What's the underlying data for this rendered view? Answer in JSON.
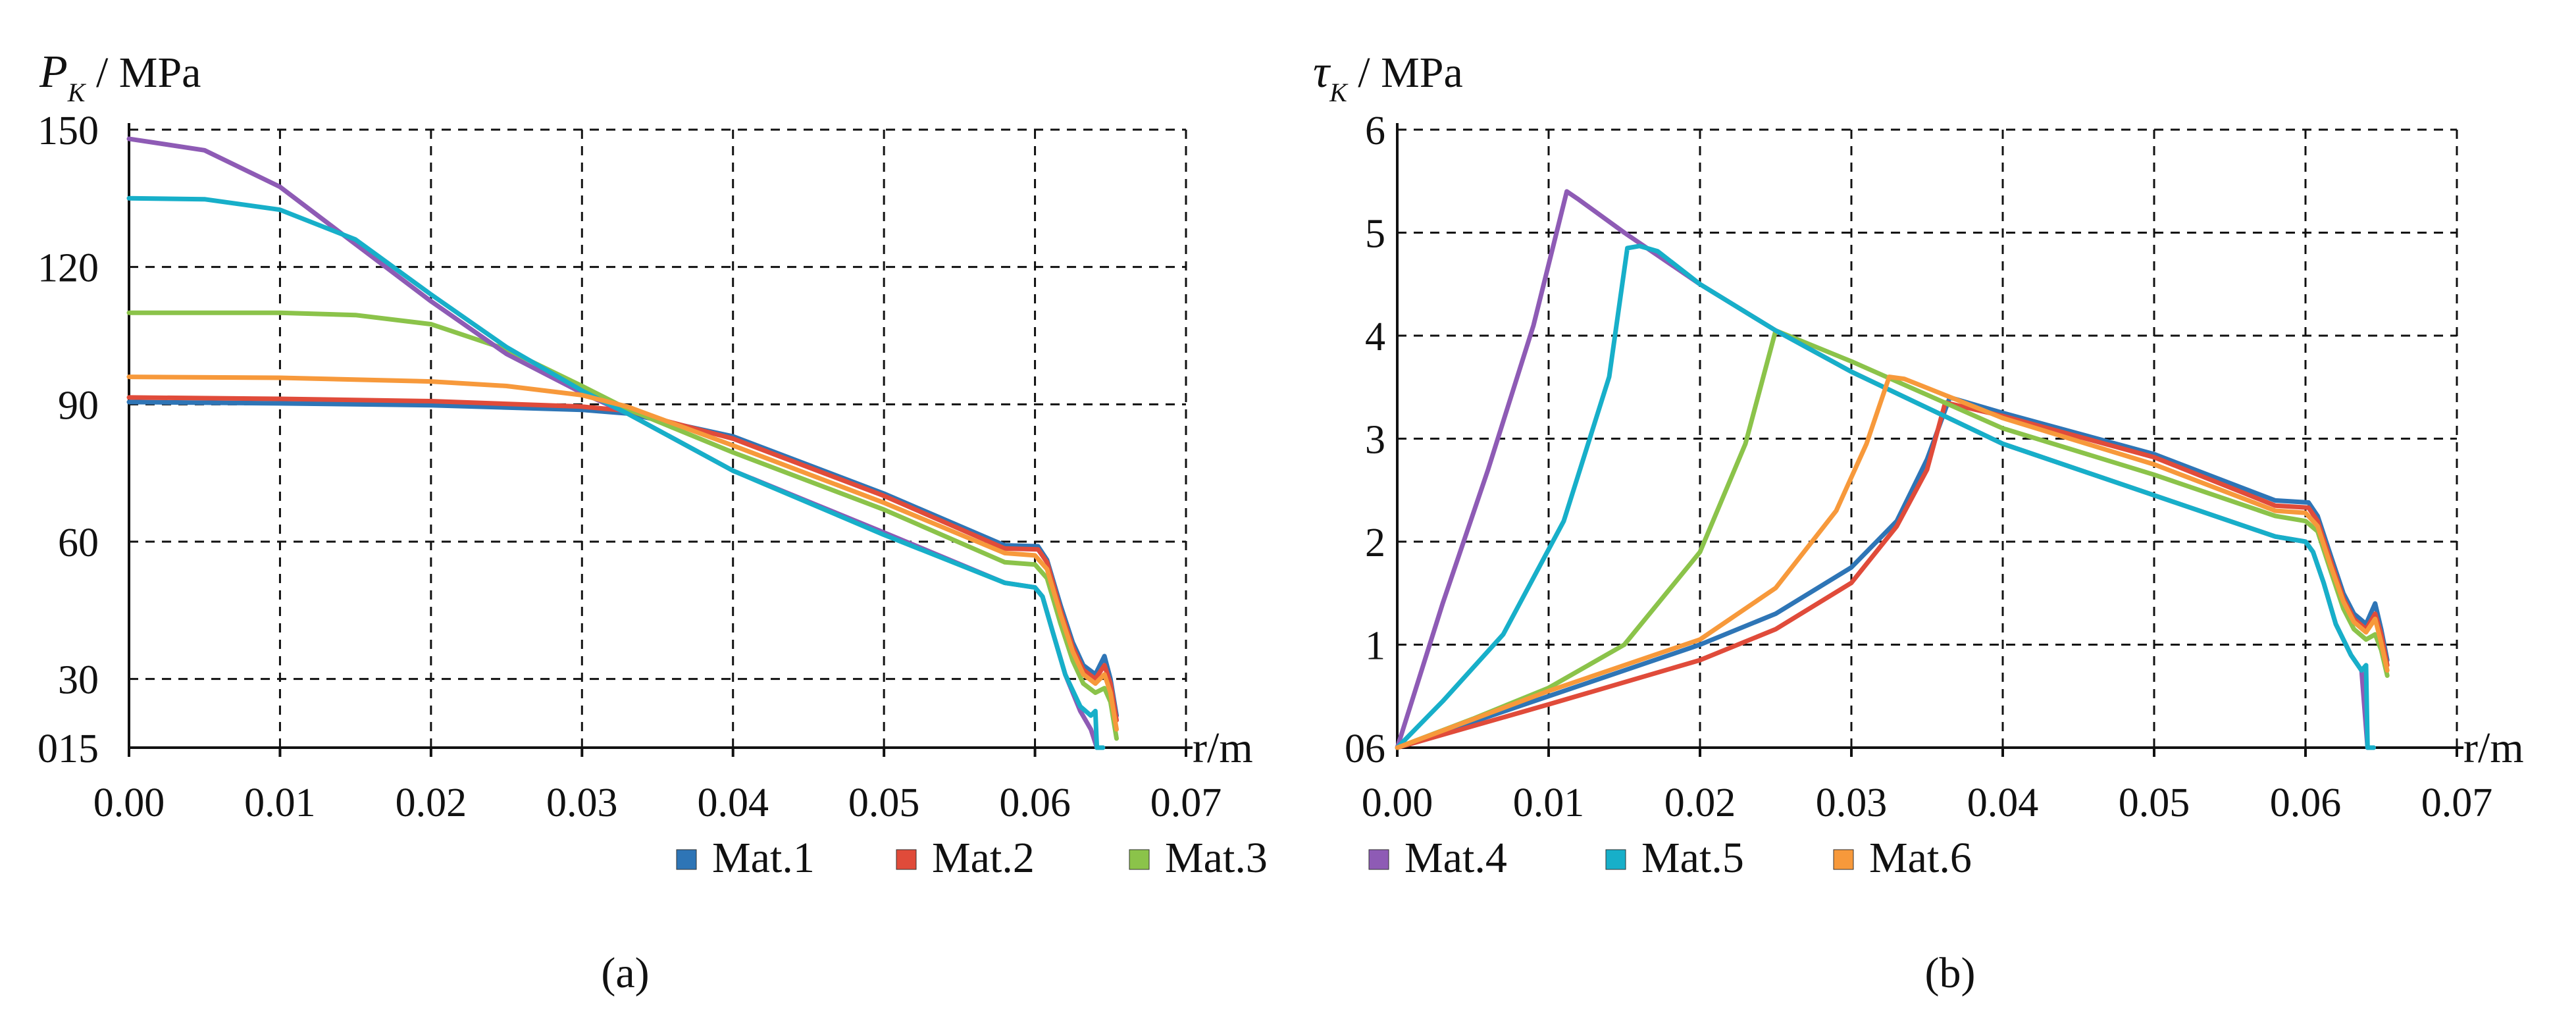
{
  "colors": {
    "Mat.1": "#2E75B6",
    "Mat.2": "#E04B3A",
    "Mat.3": "#8BC34A",
    "Mat.4": "#8E5BB5",
    "Mat.5": "#17AFC9",
    "Mat.6": "#F7993B"
  },
  "legend": {
    "items": [
      "Mat.1",
      "Mat.2",
      "Mat.3",
      "Mat.4",
      "Mat.5",
      "Mat.6"
    ]
  },
  "chart_data": [
    {
      "type": "line",
      "panel_label": "(a)",
      "ylabel": {
        "symbol": "P",
        "subscript": "K",
        "unit": " / MPa"
      },
      "xlabel": "r/m",
      "xlim": [
        0,
        0.07
      ],
      "ylim": [
        15,
        150
      ],
      "xticks": [
        "0.00",
        "0.01",
        "0.02",
        "0.03",
        "0.04",
        "0.05",
        "0.06",
        "0.07"
      ],
      "yticks": [
        {
          "value": 15,
          "label": "015"
        },
        {
          "value": 30,
          "label": "30"
        },
        {
          "value": 60,
          "label": "60"
        },
        {
          "value": 90,
          "label": "90"
        },
        {
          "value": 120,
          "label": "120"
        },
        {
          "value": 150,
          "label": "150"
        }
      ],
      "grid": true,
      "series": [
        {
          "name": "Mat.1",
          "x": [
            0,
            0.01,
            0.02,
            0.03,
            0.033,
            0.04,
            0.05,
            0.058,
            0.0602,
            0.0608,
            0.0617,
            0.0625,
            0.0632,
            0.064,
            0.0646,
            0.065,
            0.0654
          ],
          "y": [
            90.5,
            90.2,
            89.8,
            88.8,
            88,
            83,
            70.5,
            59.2,
            59,
            56,
            46,
            38,
            33,
            31,
            35,
            30,
            22
          ]
        },
        {
          "name": "Mat.2",
          "x": [
            0,
            0.01,
            0.02,
            0.03,
            0.033,
            0.04,
            0.05,
            0.058,
            0.0602,
            0.0608,
            0.0617,
            0.0625,
            0.0632,
            0.064,
            0.0646,
            0.065,
            0.0654
          ],
          "y": [
            91.5,
            91.2,
            90.7,
            89.5,
            88.6,
            82.5,
            70,
            58.5,
            58.3,
            55.5,
            45,
            37,
            32,
            30,
            33,
            29,
            21
          ]
        },
        {
          "name": "Mat.3",
          "x": [
            0,
            0.01,
            0.015,
            0.02,
            0.025,
            0.03,
            0.033,
            0.04,
            0.05,
            0.058,
            0.06,
            0.0608,
            0.0617,
            0.0625,
            0.0632,
            0.064,
            0.0646,
            0.065,
            0.0654
          ],
          "y": [
            110,
            110,
            109.5,
            107.5,
            102,
            94,
            89,
            79.5,
            67,
            55.5,
            55,
            52,
            42,
            34,
            29,
            27,
            28,
            25,
            17
          ]
        },
        {
          "name": "Mat.4",
          "x": [
            0,
            0.005,
            0.01,
            0.015,
            0.02,
            0.025,
            0.03,
            0.033,
            0.04,
            0.05,
            0.058,
            0.06,
            0.0605,
            0.0612,
            0.062,
            0.063,
            0.0637,
            0.0641,
            0.0643,
            0.0645
          ],
          "y": [
            148,
            145.5,
            137.5,
            125,
            112.5,
            101,
            92.5,
            88,
            75.5,
            62,
            51,
            50,
            48,
            40,
            31,
            23,
            19,
            15,
            15,
            15
          ]
        },
        {
          "name": "Mat.5",
          "x": [
            0,
            0.005,
            0.01,
            0.015,
            0.02,
            0.025,
            0.03,
            0.033,
            0.04,
            0.05,
            0.058,
            0.06,
            0.0605,
            0.0612,
            0.062,
            0.063,
            0.0637,
            0.064,
            0.0641,
            0.0643,
            0.0645
          ],
          "y": [
            135,
            134.8,
            132.5,
            126,
            114,
            102.5,
            93,
            88,
            75.5,
            61.5,
            51,
            50,
            48,
            40,
            31,
            24,
            22,
            23,
            15,
            15,
            15
          ]
        },
        {
          "name": "Mat.6",
          "x": [
            0,
            0.01,
            0.02,
            0.025,
            0.03,
            0.033,
            0.04,
            0.05,
            0.058,
            0.06,
            0.0608,
            0.0617,
            0.0625,
            0.0632,
            0.064,
            0.0646,
            0.065,
            0.0654
          ],
          "y": [
            96,
            95.8,
            95,
            94,
            92,
            89.5,
            81,
            68.5,
            57.5,
            57,
            54,
            44,
            36,
            31,
            29,
            31,
            27,
            19
          ]
        }
      ]
    },
    {
      "type": "line",
      "panel_label": "(b)",
      "ylabel": {
        "symbol": "τ",
        "subscript": "K",
        "unit": " / MPa"
      },
      "xlabel": "r/m",
      "xlim": [
        0,
        0.07
      ],
      "ylim": [
        0,
        6
      ],
      "xticks": [
        "0.00",
        "0.01",
        "0.02",
        "0.03",
        "0.04",
        "0.05",
        "0.06",
        "0.07"
      ],
      "yticks": [
        {
          "value": 0,
          "label": "06"
        },
        {
          "value": 1,
          "label": "1"
        },
        {
          "value": 2,
          "label": "2"
        },
        {
          "value": 3,
          "label": "3"
        },
        {
          "value": 4,
          "label": "4"
        },
        {
          "value": 5,
          "label": "5"
        },
        {
          "value": 6,
          "label": "6"
        }
      ],
      "grid": true,
      "series": [
        {
          "name": "Mat.1",
          "x": [
            0,
            0.01,
            0.02,
            0.025,
            0.03,
            0.033,
            0.035,
            0.0365,
            0.04,
            0.05,
            0.058,
            0.0602,
            0.0608,
            0.0617,
            0.0625,
            0.0632,
            0.064,
            0.0646,
            0.065,
            0.0654
          ],
          "y": [
            0,
            0.5,
            1.0,
            1.3,
            1.75,
            2.2,
            2.8,
            3.4,
            3.25,
            2.85,
            2.4,
            2.38,
            2.25,
            1.85,
            1.5,
            1.3,
            1.2,
            1.4,
            1.15,
            0.85
          ]
        },
        {
          "name": "Mat.2",
          "x": [
            0,
            0.01,
            0.02,
            0.025,
            0.03,
            0.033,
            0.035,
            0.0362,
            0.04,
            0.05,
            0.058,
            0.0602,
            0.0608,
            0.0617,
            0.0625,
            0.0632,
            0.064,
            0.0646,
            0.065,
            0.0654
          ],
          "y": [
            0,
            0.42,
            0.85,
            1.15,
            1.6,
            2.15,
            2.7,
            3.35,
            3.22,
            2.82,
            2.35,
            2.33,
            2.2,
            1.8,
            1.45,
            1.25,
            1.15,
            1.3,
            1.1,
            0.8
          ]
        },
        {
          "name": "Mat.3",
          "x": [
            0,
            0.005,
            0.01,
            0.015,
            0.02,
            0.023,
            0.025,
            0.03,
            0.04,
            0.05,
            0.058,
            0.06,
            0.0608,
            0.0617,
            0.0625,
            0.0632,
            0.064,
            0.0646,
            0.065,
            0.0654
          ],
          "y": [
            0,
            0.28,
            0.58,
            1.0,
            1.9,
            2.95,
            4.05,
            3.75,
            3.1,
            2.65,
            2.25,
            2.2,
            2.1,
            1.7,
            1.35,
            1.15,
            1.05,
            1.1,
            0.95,
            0.7
          ]
        },
        {
          "name": "Mat.4",
          "x": [
            0,
            0.003,
            0.006,
            0.009,
            0.0112,
            0.012,
            0.015,
            0.02,
            0.025,
            0.03,
            0.04,
            0.05,
            0.058,
            0.06,
            0.0605,
            0.0612,
            0.062,
            0.063,
            0.0637,
            0.0641,
            0.0643,
            0.0645
          ],
          "y": [
            0,
            1.4,
            2.7,
            4.1,
            5.4,
            5.32,
            5.0,
            4.5,
            4.05,
            3.65,
            2.95,
            2.45,
            2.05,
            2.0,
            1.9,
            1.6,
            1.2,
            0.9,
            0.75,
            0,
            0,
            0
          ]
        },
        {
          "name": "Mat.5",
          "x": [
            0,
            0.003,
            0.007,
            0.011,
            0.014,
            0.0152,
            0.016,
            0.0172,
            0.02,
            0.025,
            0.03,
            0.04,
            0.05,
            0.058,
            0.06,
            0.0605,
            0.0612,
            0.062,
            0.063,
            0.0637,
            0.064,
            0.0641,
            0.0643,
            0.0645
          ],
          "y": [
            0,
            0.45,
            1.1,
            2.2,
            3.6,
            4.85,
            4.87,
            4.82,
            4.5,
            4.05,
            3.65,
            2.95,
            2.45,
            2.05,
            2.0,
            1.9,
            1.6,
            1.2,
            0.9,
            0.75,
            0.8,
            0,
            0,
            0
          ]
        },
        {
          "name": "Mat.6",
          "x": [
            0,
            0.01,
            0.02,
            0.025,
            0.029,
            0.031,
            0.0325,
            0.0335,
            0.04,
            0.05,
            0.058,
            0.06,
            0.0608,
            0.0617,
            0.0625,
            0.0632,
            0.064,
            0.0646,
            0.065,
            0.0654
          ],
          "y": [
            0,
            0.55,
            1.05,
            1.55,
            2.3,
            2.95,
            3.6,
            3.58,
            3.2,
            2.75,
            2.3,
            2.28,
            2.15,
            1.75,
            1.42,
            1.22,
            1.12,
            1.25,
            1.02,
            0.75
          ]
        }
      ]
    }
  ]
}
